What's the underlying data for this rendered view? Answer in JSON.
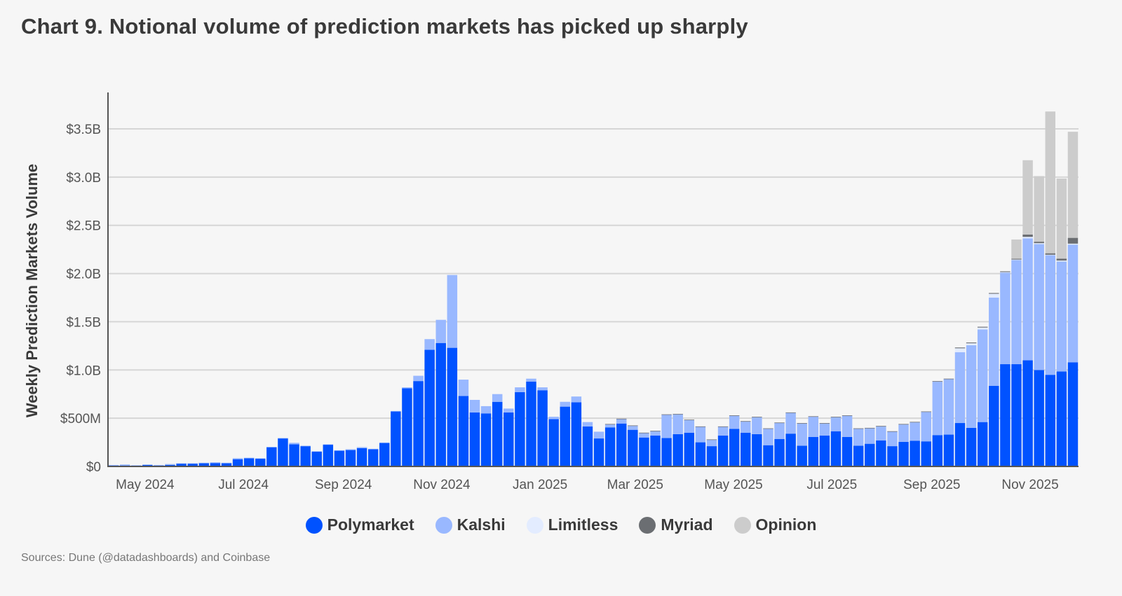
{
  "title": "Chart 9. Notional volume of prediction markets has picked up sharply",
  "source": "Sources: Dune (@datadashboards) and Coinbase",
  "chart_data": {
    "type": "bar",
    "stacked": true,
    "title": "Chart 9. Notional volume of prediction markets has picked up sharply",
    "xlabel": "",
    "ylabel": "Weekly Prediction Markets Volume",
    "unit": "USD billions",
    "ylim": [
      0,
      3.85
    ],
    "grid": true,
    "legend_position": "bottom",
    "yticks": [
      0,
      0.5,
      1.0,
      1.5,
      2.0,
      2.5,
      3.0,
      3.5
    ],
    "ytick_labels": [
      "$0",
      "$500M",
      "$1.0B",
      "$1.5B",
      "$2.0B",
      "$2.5B",
      "$3.0B",
      "$3.5B"
    ],
    "xticks": [
      "2024-05-01",
      "2024-07-01",
      "2024-09-01",
      "2024-11-01",
      "2025-01-01",
      "2025-03-01",
      "2025-05-01",
      "2025-07-01",
      "2025-09-01",
      "2025-11-01"
    ],
    "xtick_labels": [
      "May 2024",
      "Jul 2024",
      "Sep 2024",
      "Nov 2024",
      "Jan 2025",
      "Mar 2025",
      "May 2025",
      "Jul 2025",
      "Sep 2025",
      "Nov 2025"
    ],
    "x": [
      "2024-04-08",
      "2024-04-15",
      "2024-04-22",
      "2024-04-29",
      "2024-05-06",
      "2024-05-13",
      "2024-05-20",
      "2024-05-27",
      "2024-06-03",
      "2024-06-10",
      "2024-06-17",
      "2024-06-24",
      "2024-07-01",
      "2024-07-08",
      "2024-07-15",
      "2024-07-22",
      "2024-07-29",
      "2024-08-05",
      "2024-08-12",
      "2024-08-19",
      "2024-08-26",
      "2024-09-02",
      "2024-09-09",
      "2024-09-16",
      "2024-09-23",
      "2024-09-30",
      "2024-10-07",
      "2024-10-14",
      "2024-10-21",
      "2024-10-28",
      "2024-11-04",
      "2024-11-11",
      "2024-11-18",
      "2024-11-25",
      "2024-12-02",
      "2024-12-09",
      "2024-12-16",
      "2024-12-23",
      "2024-12-30",
      "2025-01-06",
      "2025-01-13",
      "2025-01-20",
      "2025-01-27",
      "2025-02-03",
      "2025-02-10",
      "2025-02-17",
      "2025-02-24",
      "2025-03-03",
      "2025-03-10",
      "2025-03-17",
      "2025-03-24",
      "2025-03-31",
      "2025-04-07",
      "2025-04-14",
      "2025-04-21",
      "2025-04-28",
      "2025-05-05",
      "2025-05-12",
      "2025-05-19",
      "2025-05-26",
      "2025-06-02",
      "2025-06-09",
      "2025-06-16",
      "2025-06-23",
      "2025-06-30",
      "2025-07-07",
      "2025-07-14",
      "2025-07-21",
      "2025-07-28",
      "2025-08-04",
      "2025-08-11",
      "2025-08-18",
      "2025-08-25",
      "2025-09-01",
      "2025-09-08",
      "2025-09-15",
      "2025-09-22",
      "2025-09-29",
      "2025-10-06",
      "2025-10-13",
      "2025-10-20",
      "2025-10-27",
      "2025-11-03",
      "2025-11-10",
      "2025-11-17",
      "2025-11-24"
    ],
    "series": [
      {
        "name": "Polymarket",
        "color": "#0052FF",
        "values": [
          0.01,
          0.01,
          0.01,
          0.015,
          0.01,
          0.015,
          0.03,
          0.03,
          0.035,
          0.035,
          0.035,
          0.075,
          0.085,
          0.08,
          0.2,
          0.29,
          0.23,
          0.21,
          0.155,
          0.225,
          0.165,
          0.17,
          0.19,
          0.18,
          0.245,
          0.57,
          0.81,
          0.885,
          1.21,
          1.28,
          1.23,
          0.73,
          0.56,
          0.55,
          0.67,
          0.56,
          0.77,
          0.88,
          0.79,
          0.49,
          0.62,
          0.665,
          0.415,
          0.29,
          0.405,
          0.445,
          0.38,
          0.3,
          0.32,
          0.295,
          0.335,
          0.35,
          0.25,
          0.21,
          0.32,
          0.39,
          0.35,
          0.335,
          0.22,
          0.285,
          0.34,
          0.215,
          0.305,
          0.32,
          0.365,
          0.305,
          0.215,
          0.235,
          0.27,
          0.21,
          0.255,
          0.267,
          0.26,
          0.325,
          0.33,
          0.45,
          0.4,
          0.46,
          0.835,
          1.06,
          1.06,
          1.1,
          1.0,
          0.95,
          0.985,
          1.08
        ]
      },
      {
        "name": "Kalshi",
        "color": "#99B8FF",
        "values": [
          0.005,
          0.01,
          0.003,
          0.005,
          0.005,
          0.01,
          0.003,
          0.003,
          0.003,
          0.008,
          0.003,
          0.01,
          0.005,
          0.005,
          0.003,
          0.005,
          0.015,
          0.005,
          0.003,
          0.005,
          0.003,
          0.008,
          0.01,
          0.003,
          0.003,
          0.005,
          0.01,
          0.055,
          0.11,
          0.24,
          0.755,
          0.17,
          0.13,
          0.075,
          0.08,
          0.04,
          0.05,
          0.03,
          0.03,
          0.025,
          0.05,
          0.06,
          0.045,
          0.07,
          0.03,
          0.045,
          0.04,
          0.045,
          0.045,
          0.24,
          0.205,
          0.13,
          0.16,
          0.065,
          0.09,
          0.135,
          0.115,
          0.175,
          0.17,
          0.165,
          0.215,
          0.23,
          0.21,
          0.125,
          0.145,
          0.22,
          0.175,
          0.16,
          0.145,
          0.15,
          0.18,
          0.19,
          0.305,
          0.555,
          0.575,
          0.735,
          0.857,
          0.96,
          0.915,
          0.95,
          1.08,
          1.265,
          1.305,
          1.24,
          1.14,
          1.22
        ]
      },
      {
        "name": "Limitless",
        "color": "#E3ECFF",
        "values": [
          0,
          0,
          0,
          0,
          0,
          0,
          0,
          0,
          0,
          0,
          0,
          0,
          0,
          0,
          0,
          0,
          0,
          0,
          0,
          0,
          0,
          0,
          0,
          0,
          0,
          0,
          0,
          0,
          0,
          0,
          0,
          0,
          0,
          0,
          0,
          0,
          0,
          0,
          0,
          0,
          0,
          0,
          0,
          0,
          0,
          0,
          0,
          0,
          0,
          0,
          0,
          0,
          0,
          0,
          0,
          0,
          0,
          0,
          0,
          0,
          0,
          0,
          0,
          0,
          0,
          0,
          0,
          0,
          0,
          0,
          0,
          0,
          0,
          0,
          0,
          0.04,
          0.02,
          0.02,
          0.04,
          0.005,
          0.005,
          0.015,
          0.01,
          0.005,
          0.01,
          0.01
        ]
      },
      {
        "name": "Myriad",
        "color": "#6B6E72",
        "values": [
          0,
          0,
          0,
          0,
          0,
          0,
          0,
          0,
          0,
          0,
          0,
          0,
          0,
          0,
          0,
          0,
          0,
          0,
          0,
          0,
          0,
          0,
          0,
          0,
          0,
          0,
          0,
          0,
          0,
          0,
          0,
          0,
          0,
          0,
          0,
          0,
          0,
          0,
          0,
          0,
          0,
          0,
          0,
          0,
          0.005,
          0.005,
          0.005,
          0.005,
          0.005,
          0.005,
          0.005,
          0.005,
          0.005,
          0.005,
          0.005,
          0.005,
          0.005,
          0.005,
          0.005,
          0.005,
          0.005,
          0.005,
          0.005,
          0.005,
          0.005,
          0.005,
          0.005,
          0.005,
          0.005,
          0.005,
          0.005,
          0.005,
          0.005,
          0.005,
          0.005,
          0.008,
          0.008,
          0.008,
          0.008,
          0.008,
          0.008,
          0.025,
          0.015,
          0.015,
          0.02,
          0.06
        ]
      },
      {
        "name": "Opinion",
        "color": "#CCCCCC",
        "values": [
          0,
          0,
          0,
          0,
          0,
          0,
          0,
          0,
          0,
          0,
          0,
          0,
          0,
          0,
          0,
          0,
          0,
          0,
          0,
          0,
          0,
          0,
          0,
          0,
          0,
          0,
          0,
          0,
          0,
          0,
          0,
          0,
          0,
          0,
          0,
          0,
          0,
          0,
          0,
          0,
          0,
          0,
          0,
          0,
          0,
          0,
          0,
          0,
          0,
          0,
          0,
          0,
          0,
          0,
          0,
          0,
          0,
          0,
          0,
          0,
          0,
          0,
          0,
          0,
          0,
          0,
          0,
          0,
          0,
          0,
          0,
          0,
          0,
          0,
          0,
          0,
          0,
          0,
          0,
          0,
          0.2,
          0.77,
          0.68,
          1.47,
          0.83,
          1.1
        ]
      }
    ]
  }
}
